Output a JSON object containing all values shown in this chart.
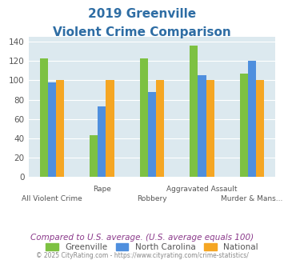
{
  "title_line1": "2019 Greenville",
  "title_line2": "Violent Crime Comparison",
  "categories": [
    "All Violent Crime",
    "Rape",
    "Robbery",
    "Aggravated Assault",
    "Murder & Mans..."
  ],
  "series": {
    "Greenville": [
      123,
      43,
      123,
      136,
      107
    ],
    "North Carolina": [
      98,
      73,
      88,
      105,
      120
    ],
    "National": [
      100,
      100,
      100,
      100,
      100
    ]
  },
  "colors": {
    "Greenville": "#7dc142",
    "North Carolina": "#4f8fde",
    "National": "#f5a623"
  },
  "ylim": [
    0,
    145
  ],
  "yticks": [
    0,
    20,
    40,
    60,
    80,
    100,
    120,
    140
  ],
  "footer_text": "Compared to U.S. average. (U.S. average equals 100)",
  "copyright_text": "© 2025 CityRating.com - https://www.cityrating.com/crime-statistics/",
  "title_color": "#2e6da4",
  "footer_color": "#8b3a8b",
  "copyright_color": "#888888",
  "plot_bg": "#dce9ef",
  "legend_labels": [
    "Greenville",
    "North Carolina",
    "National"
  ]
}
